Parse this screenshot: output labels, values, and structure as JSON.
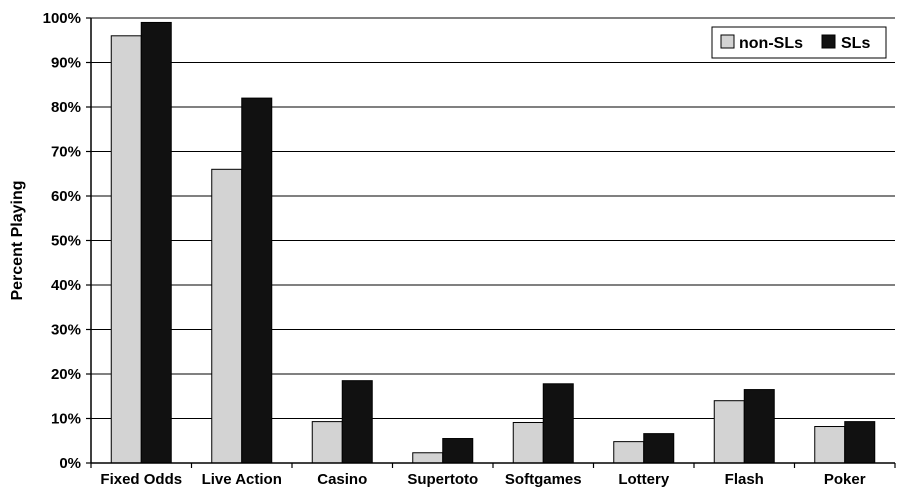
{
  "chart_data": {
    "type": "bar",
    "categories": [
      "Fixed Odds",
      "Live Action",
      "Casino",
      "Supertoto",
      "Softgames",
      "Lottery",
      "Flash",
      "Poker"
    ],
    "series": [
      {
        "name": "non-SLs",
        "color": "#d3d3d3",
        "values": [
          96,
          66,
          9.3,
          2.3,
          9.1,
          4.8,
          14,
          8.2
        ]
      },
      {
        "name": "SLs",
        "color": "#111111",
        "values": [
          99,
          82,
          18.5,
          5.5,
          17.8,
          6.6,
          16.5,
          9.3
        ]
      }
    ],
    "ylabel": "Percent Playing",
    "xlabel": "",
    "ylim": [
      0,
      100
    ],
    "ytick_labels": [
      "0%",
      "10%",
      "20%",
      "30%",
      "40%",
      "50%",
      "60%",
      "70%",
      "80%",
      "90%",
      "100%"
    ],
    "grid": true,
    "legend_position": "top-right"
  }
}
